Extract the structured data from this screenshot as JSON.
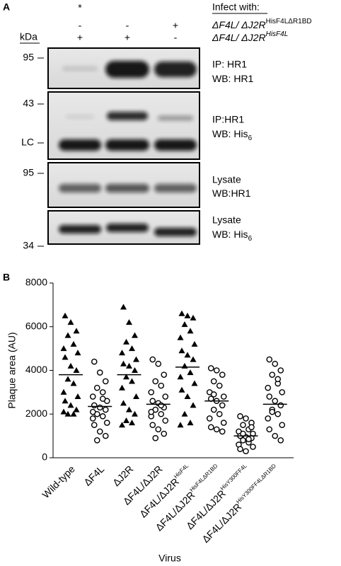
{
  "panel_a": {
    "panel_label": "A",
    "asterisk": "*",
    "infect_label": "Infect with:",
    "rows": [
      {
        "name": {
          "main": "ΔF4L/ ΔJ2R",
          "sup": "HisF4LΔR1BD"
        },
        "lanes": [
          "-",
          "-",
          "+"
        ]
      },
      {
        "name": {
          "main": "ΔF4L/ ΔJ2R",
          "sup": "HisF4L"
        },
        "lanes": [
          "+",
          "+",
          "-"
        ]
      }
    ],
    "kda_label": "kDa",
    "markers": [
      "95",
      "43",
      "LC",
      "95",
      "34"
    ],
    "blots": [
      {
        "line1": "IP: HR1",
        "line2": {
          "main": "WB: HR1"
        }
      },
      {
        "line1": "IP:HR1",
        "line2": {
          "main": "WB: His",
          "sub": "6"
        }
      },
      {
        "line1": "Lysate",
        "line2": {
          "main": "WB:HR1"
        }
      },
      {
        "line1": "Lysate",
        "line2": {
          "main": "WB: His",
          "sub": "6"
        }
      }
    ]
  },
  "chart_data": {
    "type": "strip",
    "panel_label": "B",
    "x_label": "Virus",
    "y_label": "Plaque area (AU)",
    "categories": [
      {
        "label": "Wild-type"
      },
      {
        "label": "ΔF4L"
      },
      {
        "label": "ΔJ2R"
      },
      {
        "label": "ΔF4L/ΔJ2R"
      },
      {
        "label": "ΔF4L/ΔJ2R",
        "sup": "HisF4L"
      },
      {
        "label": "ΔF4L/ΔJ2R",
        "sup": "HisF4LΔR1BD"
      },
      {
        "label": "ΔF4L/ΔJ2R",
        "sup": "HisY300FF4L"
      },
      {
        "label": "ΔF4L/ΔJ2R",
        "sup": "HisY300FF4LΔR1BD"
      }
    ],
    "series": [
      {
        "marker": "triangle",
        "color": "#000000",
        "mean": 3800,
        "values": [
          6500,
          6200,
          5800,
          5600,
          5200,
          5000,
          4800,
          4600,
          4200,
          4000,
          3600,
          3400,
          3000,
          2800,
          2600,
          2400,
          2200,
          2000,
          2000,
          2100
        ]
      },
      {
        "marker": "circle",
        "color": "#000000",
        "mean": 2350,
        "values": [
          4400,
          3900,
          3500,
          3200,
          3000,
          2800,
          2600,
          2400,
          2300,
          2200,
          2000,
          1900,
          1800,
          1600,
          1500,
          1200,
          1000,
          800,
          2700,
          2100
        ]
      },
      {
        "marker": "triangle",
        "color": "#000000",
        "mean": 3800,
        "values": [
          6900,
          6200,
          5600,
          5300,
          5000,
          4800,
          4500,
          4300,
          4200,
          4000,
          3700,
          3500,
          3200,
          2800,
          2500,
          2200,
          2000,
          1700,
          1600,
          1500
        ]
      },
      {
        "marker": "circle",
        "color": "#000000",
        "mean": 2450,
        "values": [
          4500,
          4300,
          3800,
          3500,
          3300,
          3000,
          2800,
          2600,
          2500,
          2300,
          2200,
          2000,
          1900,
          1700,
          1500,
          1300,
          1100,
          900,
          2400,
          2100
        ]
      },
      {
        "marker": "triangle",
        "color": "#000000",
        "mean": 4150,
        "values": [
          6600,
          6500,
          6400,
          6100,
          5800,
          5500,
          5200,
          4900,
          4700,
          4500,
          4200,
          3900,
          3700,
          3400,
          3100,
          2800,
          2400,
          2000,
          1600,
          1500
        ]
      },
      {
        "marker": "circle",
        "color": "#000000",
        "mean": 2600,
        "values": [
          4100,
          4000,
          3800,
          3500,
          3300,
          3000,
          2800,
          2700,
          2600,
          2400,
          2200,
          2000,
          1800,
          1600,
          1400,
          1300,
          1200,
          2900
        ]
      },
      {
        "marker": "circle",
        "color": "#000000",
        "mean": 1000,
        "values": [
          1900,
          1800,
          1600,
          1500,
          1300,
          1200,
          1100,
          1000,
          950,
          900,
          800,
          700,
          600,
          500,
          400,
          300,
          1400,
          1100,
          850
        ]
      },
      {
        "marker": "circle",
        "color": "#000000",
        "mean": 2450,
        "values": [
          4500,
          4300,
          4000,
          3800,
          3400,
          3200,
          3000,
          2800,
          2600,
          2400,
          2200,
          2000,
          1800,
          1500,
          1300,
          1000,
          800,
          2100,
          3600
        ]
      }
    ],
    "ylim": [
      0,
      8000
    ],
    "yticks": [
      0,
      2000,
      4000,
      6000,
      8000
    ]
  }
}
